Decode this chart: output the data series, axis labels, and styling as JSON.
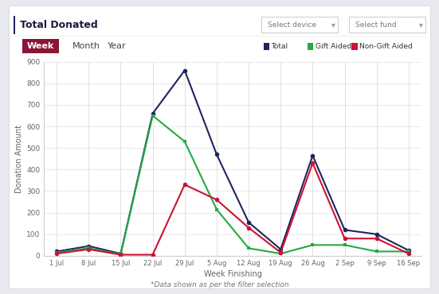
{
  "x_labels": [
    "1 Jul",
    "8 Jul",
    "15 Jul",
    "22 Jul",
    "29 Jul",
    "5 Aug",
    "12 Aug",
    "19 Aug",
    "26 Aug",
    "2 Sep",
    "9 Sep",
    "16 Sep"
  ],
  "total": [
    20,
    45,
    10,
    660,
    860,
    470,
    155,
    30,
    465,
    120,
    100,
    25
  ],
  "gift_aided": [
    15,
    35,
    8,
    650,
    530,
    215,
    35,
    10,
    50,
    50,
    20,
    20
  ],
  "non_gift_aided": [
    10,
    30,
    5,
    5,
    330,
    260,
    130,
    15,
    430,
    80,
    80,
    10
  ],
  "total_color": "#1e2460",
  "gift_aided_color": "#22aa44",
  "non_gift_aided_color": "#cc1133",
  "outer_bg": "#e8eaf0",
  "card_bg": "#ffffff",
  "chart_bg": "#ffffff",
  "title": "Total Donated",
  "xlabel": "Week Finishing",
  "ylabel": "Donation Amount",
  "ylim": [
    0,
    900
  ],
  "yticks": [
    0,
    100,
    200,
    300,
    400,
    500,
    600,
    700,
    800,
    900
  ],
  "legend_labels": [
    "Total",
    "Gift Aided",
    "Non-Gift Aided"
  ],
  "week_label": "Week",
  "month_label": "Month",
  "year_label": "Year",
  "week_btn_color_top": "#8b1535",
  "week_btn_color_bot": "#3d0e2b",
  "note": "*Data shown as per the filter selection",
  "select_device": "Select device",
  "select_fund": "Select fund",
  "grid_color": "#e0e0e0",
  "marker_size": 4,
  "line_width": 1.5,
  "accent_color": "#1e2460"
}
